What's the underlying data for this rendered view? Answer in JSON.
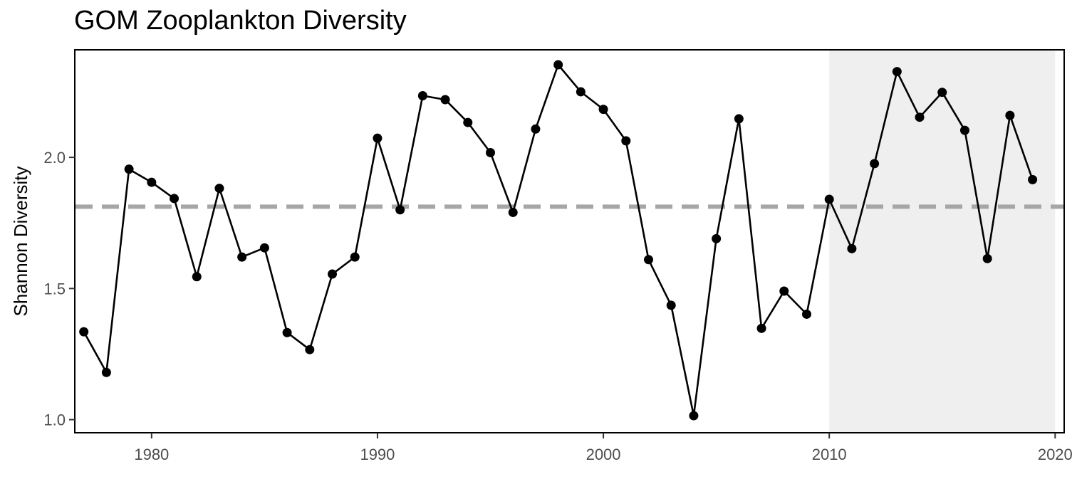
{
  "chart_data": {
    "type": "line",
    "title": "GOM Zooplankton Diversity",
    "xlabel": "",
    "ylabel": "Shannon Diversity",
    "xlim": [
      1976.6,
      2020.4
    ],
    "ylim": [
      0.95,
      2.41
    ],
    "x_ticks": [
      1980,
      1990,
      2000,
      2010,
      2020
    ],
    "y_ticks": [
      1.0,
      1.5,
      2.0
    ],
    "y_tick_labels": [
      "1.0",
      "1.5",
      "2.0"
    ],
    "grid": false,
    "reference_line": {
      "y": 1.812,
      "style": "dashed",
      "color": "#a6a6a6"
    },
    "highlight_region": {
      "x": [
        2010,
        2020
      ],
      "color": "#efefef"
    },
    "series": [
      {
        "color": "#000000",
        "x": [
          1977,
          1978,
          1979,
          1980,
          1981,
          1982,
          1983,
          1984,
          1985,
          1986,
          1987,
          1988,
          1989,
          1990,
          1991,
          1992,
          1993,
          1994,
          1995,
          1996,
          1997,
          1998,
          1999,
          2000,
          2001,
          2002,
          2003,
          2004,
          2005,
          2006,
          2007,
          2008,
          2009,
          2010,
          2011,
          2012,
          2013,
          2014,
          2015,
          2016,
          2017,
          2018,
          2019
        ],
        "y": [
          1.335,
          1.18,
          1.955,
          1.905,
          1.843,
          1.545,
          1.882,
          1.62,
          1.655,
          1.332,
          1.267,
          1.555,
          1.62,
          2.073,
          1.8,
          2.235,
          2.22,
          2.133,
          2.018,
          1.79,
          2.108,
          2.353,
          2.25,
          2.183,
          2.063,
          1.61,
          1.436,
          1.015,
          1.69,
          2.147,
          1.348,
          1.49,
          1.402,
          1.84,
          1.652,
          1.976,
          2.327,
          2.153,
          2.248,
          2.103,
          1.614,
          2.16,
          1.915
        ]
      }
    ]
  }
}
